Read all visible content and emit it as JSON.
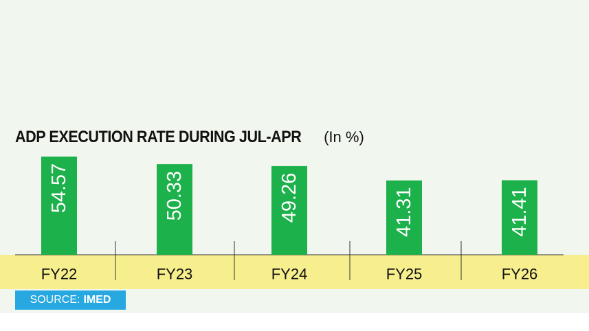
{
  "colors": {
    "background": "#f1f6ef",
    "bar": "#1db14b",
    "axis_band": "#f7ef8e",
    "source_bg": "#27a8e0",
    "divider": "#333333"
  },
  "source": {
    "label": "SOURCE:",
    "name": "IMED"
  },
  "chart_data": {
    "type": "bar",
    "title": "ADP EXECUTION RATE DURING JUL-APR",
    "unit": "(In %)",
    "categories": [
      "FY22",
      "FY23",
      "FY24",
      "FY25",
      "FY26"
    ],
    "values": [
      54.57,
      50.33,
      49.26,
      41.31,
      41.41
    ],
    "value_labels": [
      "54.57",
      "50.33",
      "49.26",
      "41.31",
      "41.41"
    ],
    "ylim": [
      0,
      100
    ],
    "grid": false,
    "legend": "none",
    "data_label_orientation": "vertical"
  }
}
